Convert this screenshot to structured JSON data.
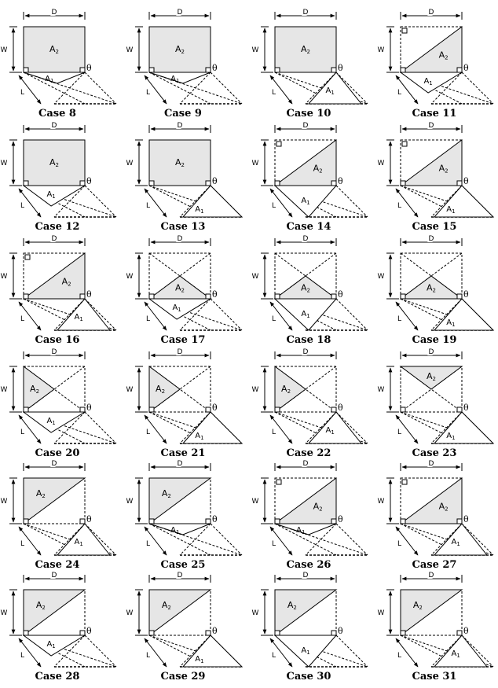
{
  "labels": {
    "depth": "D",
    "width": "W",
    "length": "L",
    "theta": "θ",
    "area_base": "A",
    "sub_1": "1",
    "sub_2": "2"
  },
  "cases": [
    {
      "caption": "Case 8",
      "top_fill": "full",
      "bot": "ext-top",
      "a1": "ext"
    },
    {
      "caption": "Case 9",
      "top_fill": "full",
      "bot": "ext-top",
      "a1": "ext"
    },
    {
      "caption": "Case 10",
      "top_fill": "full",
      "bot": "ext-right",
      "a1": "right"
    },
    {
      "caption": "Case 11",
      "top_fill": "diag-br",
      "bot": "left-tri",
      "a1": "left"
    },
    {
      "caption": "Case 12",
      "top_fill": "full",
      "bot": "left-tri",
      "a1": "left"
    },
    {
      "caption": "Case 13",
      "top_fill": "full",
      "bot": "mid-tri",
      "a1": "mid"
    },
    {
      "caption": "Case 14",
      "top_fill": "diag-br",
      "bot": "left-mid",
      "a1": "lm"
    },
    {
      "caption": "Case 15",
      "top_fill": "diag-br",
      "bot": "mid-tri",
      "a1": "mid"
    },
    {
      "caption": "Case 16",
      "top_fill": "diag-br",
      "bot": "ext-right",
      "a1": "right"
    },
    {
      "caption": "Case 17",
      "top_fill": "x-bottom",
      "bot": "left-tri",
      "a1": "left"
    },
    {
      "caption": "Case 18",
      "top_fill": "x-bottom",
      "bot": "left-mid",
      "a1": "lm"
    },
    {
      "caption": "Case 19",
      "top_fill": "x-bottom",
      "bot": "mid-tri",
      "a1": "mid"
    },
    {
      "caption": "Case 20",
      "top_fill": "x-left",
      "bot": "left-tri",
      "a1": "left"
    },
    {
      "caption": "Case 21",
      "top_fill": "x-left",
      "bot": "mid-tri",
      "a1": "mid"
    },
    {
      "caption": "Case 22",
      "top_fill": "x-left",
      "bot": "ext-right",
      "a1": "right"
    },
    {
      "caption": "Case 23",
      "top_fill": "x-top",
      "bot": "mid-tri",
      "a1": "mid"
    },
    {
      "caption": "Case 24",
      "top_fill": "diag-tl",
      "bot": "ext-right",
      "a1": "right"
    },
    {
      "caption": "Case 25",
      "top_fill": "diag-tl",
      "bot": "ext-top",
      "a1": "ext"
    },
    {
      "caption": "Case 26",
      "top_fill": "diag-br",
      "bot": "ext-top",
      "a1": "ext"
    },
    {
      "caption": "Case 27",
      "top_fill": "diag-br",
      "bot": "ext-right",
      "a1": "right"
    },
    {
      "caption": "Case 28",
      "top_fill": "diag-tl",
      "bot": "left-tri",
      "a1": "left"
    },
    {
      "caption": "Case 29",
      "top_fill": "diag-tl",
      "bot": "mid-tri",
      "a1": "mid"
    },
    {
      "caption": "Case 30",
      "top_fill": "diag-tl",
      "bot": "left-mid",
      "a1": "lm"
    },
    {
      "caption": "Case 31",
      "top_fill": "diag-tl",
      "bot": "ext-right",
      "a1": "right"
    }
  ]
}
